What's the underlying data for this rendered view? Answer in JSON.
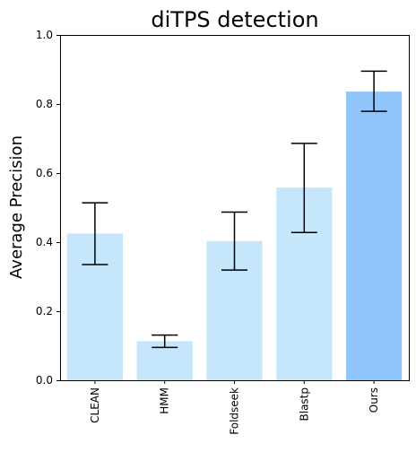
{
  "chart_data": {
    "type": "bar",
    "title": "diTPS detection",
    "xlabel": "",
    "ylabel": "Average Precision",
    "ylim": [
      0,
      1.0
    ],
    "yticks": [
      0.0,
      0.2,
      0.4,
      0.6,
      0.8,
      1.0
    ],
    "ytick_labels": [
      "0.0",
      "0.2",
      "0.4",
      "0.6",
      "0.8",
      "1.0"
    ],
    "categories": [
      "CLEAN",
      "HMM",
      "Foldseek",
      "Blastp",
      "Ours"
    ],
    "values": [
      0.425,
      0.113,
      0.403,
      0.558,
      0.836
    ],
    "error_low": [
      0.335,
      0.095,
      0.319,
      0.428,
      0.779
    ],
    "error_high": [
      0.514,
      0.131,
      0.487,
      0.686,
      0.895
    ],
    "bar_colors": [
      "#c5e6fb",
      "#c5e6fb",
      "#c5e6fb",
      "#c5e6fb",
      "#90c5fb"
    ],
    "error_color": "#000000",
    "x_tick_rotation": "vertical",
    "grid": false,
    "legend": "none"
  }
}
